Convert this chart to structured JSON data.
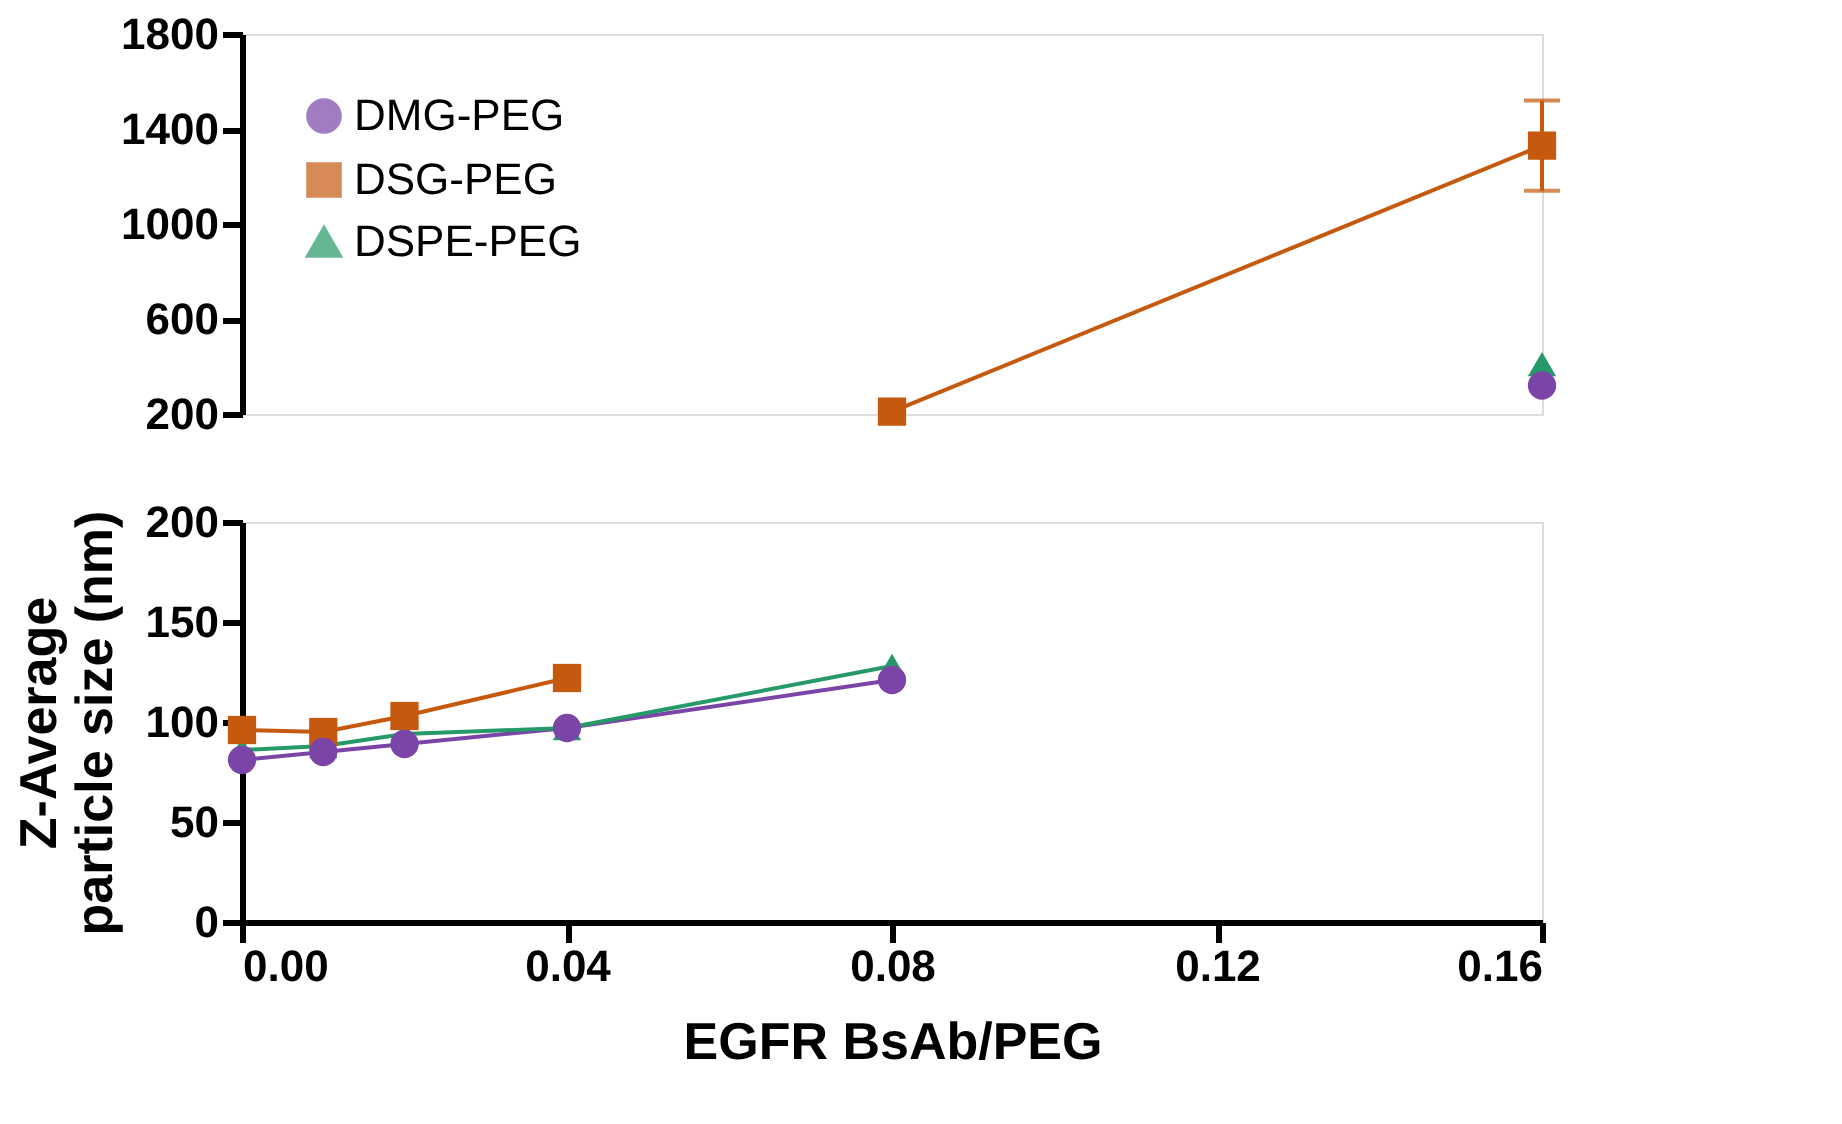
{
  "chart_data": [
    {
      "type": "line",
      "x": [
        0.08,
        0.16
      ],
      "xlim": [
        0,
        0.16
      ],
      "ylim": [
        200,
        1800
      ],
      "yticks": [
        200,
        600,
        1000,
        1400,
        1800
      ],
      "tick_labels": "y",
      "legend": "top left",
      "grid": false,
      "series": [
        {
          "name": "DMG-PEG",
          "color": "#7b45a8",
          "marker": "circle",
          "values": [
            null,
            320
          ]
        },
        {
          "name": "DSG-PEG",
          "color": "#c55a0e",
          "marker": "square",
          "values": [
            210,
            1330
          ],
          "errors": [
            null,
            [
              1140,
              1520
            ]
          ]
        },
        {
          "name": "DSPE-PEG",
          "color": "#259a68",
          "marker": "triangle",
          "values": [
            null,
            410
          ]
        }
      ]
    },
    {
      "type": "line",
      "x": [
        0,
        0.01,
        0.02,
        0.04,
        0.08
      ],
      "xlim": [
        0,
        0.16
      ],
      "xticks": [
        {
          "value": 0,
          "label": "0.00"
        },
        {
          "value": 0.04,
          "label": "0.04"
        },
        {
          "value": 0.08,
          "label": "0.08"
        },
        {
          "value": 0.12,
          "label": "0.12"
        },
        {
          "value": 0.16,
          "label": "0.16"
        }
      ],
      "ylim": [
        0,
        200
      ],
      "yticks": [
        0,
        50,
        100,
        150,
        200
      ],
      "xlabel": "EGFR BsAb/PEG",
      "ylabel": "Z-Average\nparticle size (nm)",
      "legend": false,
      "grid": false,
      "series": [
        {
          "color": "#7b45a8",
          "marker": "circle",
          "values": [
            81,
            85,
            89,
            97,
            121
          ]
        },
        {
          "color": "#c55a0e",
          "marker": "square",
          "values": [
            96,
            95,
            103,
            122,
            null
          ]
        },
        {
          "color": "#259a68",
          "marker": "triangle",
          "values": [
            86,
            88,
            94,
            97,
            128
          ]
        }
      ]
    }
  ]
}
